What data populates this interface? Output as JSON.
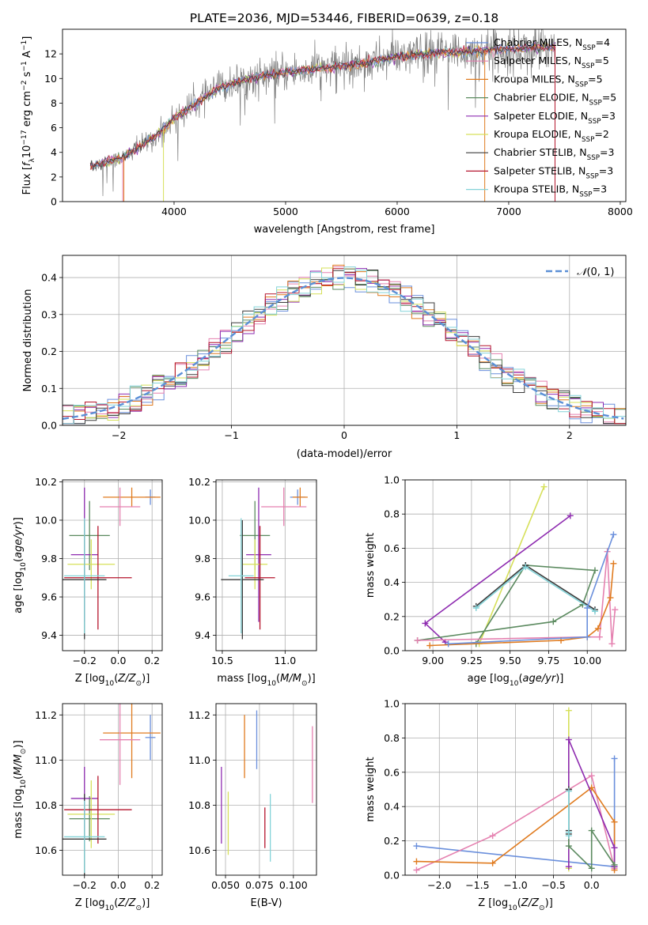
{
  "title": "PLATE=2036, MJD=53446, FIBERID=0639, z=0.18",
  "colors": {
    "chabrier_miles": "#6a8fdc",
    "salpeter_miles": "#e581b0",
    "kroupa_miles": "#e07b1f",
    "chabrier_elodie": "#5b8a5f",
    "salpeter_elodie": "#8e2bb0",
    "kroupa_elodie": "#d6e05a",
    "chabrier_stelib": "#3b3b3b",
    "salpeter_stelib": "#b5152d",
    "kroupa_stelib": "#84d3d8",
    "data": "#808080",
    "normal": "#5b8fd6"
  },
  "legend": [
    {
      "key": "chabrier_miles",
      "label": "Chabrier MILES, N",
      "sub": "SSP",
      "tail": "=4"
    },
    {
      "key": "salpeter_miles",
      "label": "Salpeter MILES, N",
      "sub": "SSP",
      "tail": "=5"
    },
    {
      "key": "kroupa_miles",
      "label": "Kroupa MILES, N",
      "sub": "SSP",
      "tail": "=5"
    },
    {
      "key": "chabrier_elodie",
      "label": "Chabrier ELODIE, N",
      "sub": "SSP",
      "tail": "=5"
    },
    {
      "key": "salpeter_elodie",
      "label": "Salpeter ELODIE, N",
      "sub": "SSP",
      "tail": "=3"
    },
    {
      "key": "kroupa_elodie",
      "label": "Kroupa ELODIE, N",
      "sub": "SSP",
      "tail": "=2"
    },
    {
      "key": "chabrier_stelib",
      "label": "Chabrier STELIB, N",
      "sub": "SSP",
      "tail": "=3"
    },
    {
      "key": "salpeter_stelib",
      "label": "Salpeter STELIB, N",
      "sub": "SSP",
      "tail": "=3"
    },
    {
      "key": "kroupa_stelib",
      "label": "Kroupa STELIB, N",
      "sub": "SSP",
      "tail": "=3"
    }
  ],
  "chart_data": [
    {
      "id": "spectrum",
      "type": "line",
      "xlabel": "wavelength [Angstrom, rest frame]",
      "ylabel": "Flux [f_λ 10^-17 erg cm^-2 s^-1 A^-1]",
      "xlim": [
        3000,
        8050
      ],
      "ylim": [
        0,
        14
      ],
      "xticks": [
        4000,
        5000,
        6000,
        7000,
        8000
      ],
      "yticks": [
        0,
        2,
        4,
        6,
        8,
        10,
        12
      ],
      "grid": false,
      "legend_position": "right",
      "continuum": {
        "x": [
          3250,
          3400,
          3550,
          3700,
          3850,
          4000,
          4200,
          4400,
          4600,
          4800,
          5000,
          5200,
          5400,
          5600,
          5800,
          6000,
          6200,
          6400,
          6600,
          6800,
          7000,
          7200,
          7400
        ],
        "y": [
          2.9,
          3.2,
          3.6,
          4.5,
          5.4,
          6.8,
          8.0,
          9.2,
          9.8,
          10.2,
          10.5,
          10.7,
          10.9,
          11.1,
          11.4,
          11.8,
          11.9,
          12.1,
          12.2,
          12.3,
          12.4,
          12.5,
          12.6
        ]
      },
      "data_range": [
        3250,
        7420
      ],
      "model_range": [
        3250,
        7420
      ]
    },
    {
      "id": "residuals",
      "type": "histogram",
      "xlabel": "(data-model)/error",
      "ylabel": "Normed distribution",
      "xlim": [
        -2.5,
        2.5
      ],
      "ylim": [
        0,
        0.46
      ],
      "xticks": [
        -2,
        -1,
        0,
        1,
        2
      ],
      "yticks": [
        0,
        0.1,
        0.2,
        0.3,
        0.4
      ],
      "grid": true,
      "legend": {
        "label": "N(0,1)",
        "position": "top-right"
      },
      "bin_width": 0.1
    },
    {
      "id": "age_vs_Z",
      "type": "errorbar",
      "xlabel": "Z [log10(Z/Z⊙)]",
      "ylabel": "age [log10(age/yr)]",
      "xlim": [
        -0.33,
        0.26
      ],
      "ylim": [
        9.32,
        10.21
      ],
      "xticks": [
        -0.2,
        0.0,
        0.2
      ],
      "yticks": [
        9.4,
        9.6,
        9.8,
        10.0,
        10.2
      ],
      "points": [
        {
          "key": "chabrier_miles",
          "x": 0.19,
          "y": 10.12,
          "xerr": 0.03,
          "yerr": 0.04
        },
        {
          "key": "kroupa_miles",
          "x": 0.08,
          "y": 10.12,
          "xerr": 0.17,
          "yerr": 0.05
        },
        {
          "key": "salpeter_miles",
          "x": 0.01,
          "y": 10.07,
          "xerr": 0.12,
          "yerr": 0.1
        },
        {
          "key": "chabrier_elodie",
          "x": -0.17,
          "y": 9.92,
          "xerr": 0.12,
          "yerr": 0.18
        },
        {
          "key": "salpeter_elodie",
          "x": -0.2,
          "y": 9.82,
          "xerr": 0.08,
          "yerr": 0.35
        },
        {
          "key": "kroupa_elodie",
          "x": -0.16,
          "y": 9.77,
          "xerr": 0.14,
          "yerr": 0.13
        },
        {
          "key": "salpeter_stelib",
          "x": -0.12,
          "y": 9.7,
          "xerr": 0.2,
          "yerr": 0.27
        },
        {
          "key": "chabrier_stelib",
          "x": -0.2,
          "y": 9.69,
          "xerr": 0.13,
          "yerr": 0.31
        },
        {
          "key": "kroupa_stelib",
          "x": -0.2,
          "y": 9.71,
          "xerr": 0.12,
          "yerr": 0.3
        }
      ]
    },
    {
      "id": "age_vs_mass",
      "type": "errorbar",
      "xlabel": "mass [log10(M/M⊙)]",
      "ylabel": "",
      "xlim": [
        10.45,
        11.25
      ],
      "ylim": [
        9.32,
        10.21
      ],
      "xticks": [
        10.5,
        11.0
      ],
      "yticks": [
        9.4,
        9.6,
        9.8,
        10.0,
        10.2
      ],
      "points": [
        {
          "key": "chabrier_miles",
          "x": 11.1,
          "y": 10.12,
          "xerr": 0.06,
          "yerr": 0.04
        },
        {
          "key": "kroupa_miles",
          "x": 11.12,
          "y": 10.12,
          "xerr": 0.06,
          "yerr": 0.05
        },
        {
          "key": "salpeter_miles",
          "x": 10.99,
          "y": 10.07,
          "xerr": 0.18,
          "yerr": 0.1
        },
        {
          "key": "chabrier_elodie",
          "x": 10.76,
          "y": 9.92,
          "xerr": 0.12,
          "yerr": 0.18
        },
        {
          "key": "salpeter_elodie",
          "x": 10.79,
          "y": 9.82,
          "xerr": 0.1,
          "yerr": 0.35
        },
        {
          "key": "kroupa_elodie",
          "x": 10.76,
          "y": 9.77,
          "xerr": 0.1,
          "yerr": 0.13
        },
        {
          "key": "salpeter_stelib",
          "x": 10.8,
          "y": 9.7,
          "xerr": 0.12,
          "yerr": 0.27
        },
        {
          "key": "chabrier_stelib",
          "x": 10.66,
          "y": 9.69,
          "xerr": 0.17,
          "yerr": 0.31
        },
        {
          "key": "kroupa_stelib",
          "x": 10.65,
          "y": 9.71,
          "xerr": 0.1,
          "yerr": 0.3
        }
      ]
    },
    {
      "id": "mass_weight_vs_age",
      "type": "line",
      "xlabel": "age [log10(age/yr)]",
      "ylabel": "mass weight",
      "xlim": [
        8.82,
        10.25
      ],
      "ylim": [
        0,
        1.0
      ],
      "xticks": [
        9.0,
        9.25,
        9.5,
        9.75,
        10.0
      ],
      "yticks": [
        0.0,
        0.2,
        0.4,
        0.6,
        0.8,
        1.0
      ],
      "series": [
        {
          "key": "kroupa_elodie",
          "x": [
            9.3,
            9.72
          ],
          "y": [
            0.04,
            0.96
          ]
        },
        {
          "key": "salpeter_elodie",
          "x": [
            9.89,
            8.95,
            9.08
          ],
          "y": [
            0.79,
            0.16,
            0.05
          ]
        },
        {
          "key": "chabrier_elodie",
          "x": [
            9.28,
            9.6,
            10.05,
            9.97,
            9.78,
            8.9
          ],
          "y": [
            0.04,
            0.5,
            0.47,
            0.27,
            0.17,
            0.06
          ]
        },
        {
          "key": "chabrier_stelib",
          "x": [
            10.05,
            9.6,
            9.28
          ],
          "y": [
            0.24,
            0.5,
            0.26
          ]
        },
        {
          "key": "kroupa_stelib",
          "x": [
            10.05,
            9.6,
            9.28
          ],
          "y": [
            0.23,
            0.49,
            0.25
          ]
        },
        {
          "key": "salpeter_miles",
          "x": [
            10.18,
            10.16,
            10.13,
            10.08,
            10.0,
            8.9
          ],
          "y": [
            0.24,
            0.04,
            0.58,
            0.08,
            0.08,
            0.06
          ]
        },
        {
          "key": "kroupa_miles",
          "x": [
            10.17,
            10.15,
            10.07,
            10.0,
            9.83,
            8.98
          ],
          "y": [
            0.51,
            0.31,
            0.13,
            0.08,
            0.06,
            0.03
          ]
        },
        {
          "key": "chabrier_miles",
          "x": [
            10.17,
            10.0,
            10.0,
            9.1
          ],
          "y": [
            0.68,
            0.25,
            0.08,
            0.04
          ]
        }
      ]
    },
    {
      "id": "mass_vs_Z",
      "type": "errorbar",
      "xlabel": "Z [log10(Z/Z⊙)]",
      "ylabel": "mass [log10(M/M⊙)]",
      "xlim": [
        -0.33,
        0.26
      ],
      "ylim": [
        10.49,
        11.25
      ],
      "xticks": [
        -0.2,
        0.0,
        0.2
      ],
      "yticks": [
        10.6,
        10.8,
        11.0,
        11.2
      ],
      "points": [
        {
          "key": "chabrier_miles",
          "x": 0.19,
          "y": 11.1,
          "xerr": 0.03,
          "yerr": 0.1
        },
        {
          "key": "kroupa_miles",
          "x": 0.08,
          "y": 11.12,
          "xerr": 0.17,
          "yerr": 0.2
        },
        {
          "key": "salpeter_miles",
          "x": 0.01,
          "y": 11.09,
          "xerr": 0.12,
          "yerr": 0.2
        },
        {
          "key": "chabrier_elodie",
          "x": -0.17,
          "y": 10.74,
          "xerr": 0.12,
          "yerr": 0.1
        },
        {
          "key": "salpeter_elodie",
          "x": -0.2,
          "y": 10.83,
          "xerr": 0.08,
          "yerr": 0.14
        },
        {
          "key": "kroupa_elodie",
          "x": -0.16,
          "y": 10.76,
          "xerr": 0.14,
          "yerr": 0.15
        },
        {
          "key": "salpeter_stelib",
          "x": -0.12,
          "y": 10.78,
          "xerr": 0.2,
          "yerr": 0.15
        },
        {
          "key": "chabrier_stelib",
          "x": -0.2,
          "y": 10.65,
          "xerr": 0.13,
          "yerr": 0.2
        },
        {
          "key": "kroupa_stelib",
          "x": -0.2,
          "y": 10.66,
          "xerr": 0.12,
          "yerr": 0.16
        }
      ]
    },
    {
      "id": "mass_vs_ebv",
      "type": "errorbar",
      "xlabel": "E(B-V)",
      "ylabel": "",
      "xlim": [
        0.043,
        0.117
      ],
      "ylim": [
        10.49,
        11.25
      ],
      "xticks": [
        0.05,
        0.075,
        0.1
      ],
      "yticks": [
        10.6,
        10.8,
        11.0,
        11.2
      ],
      "points": [
        {
          "key": "salpeter_elodie",
          "x": 0.047,
          "y": 10.8,
          "xerr": 0,
          "yerr": 0.17
        },
        {
          "key": "kroupa_elodie",
          "x": 0.052,
          "y": 10.72,
          "xerr": 0,
          "yerr": 0.14
        },
        {
          "key": "kroupa_miles",
          "x": 0.064,
          "y": 11.06,
          "xerr": 0,
          "yerr": 0.14
        },
        {
          "key": "chabrier_miles",
          "x": 0.073,
          "y": 11.09,
          "xerr": 0,
          "yerr": 0.13
        },
        {
          "key": "salpeter_stelib",
          "x": 0.079,
          "y": 10.7,
          "xerr": 0,
          "yerr": 0.09
        },
        {
          "key": "kroupa_stelib",
          "x": 0.083,
          "y": 10.7,
          "xerr": 0,
          "yerr": 0.15
        },
        {
          "key": "salpeter_miles",
          "x": 0.114,
          "y": 10.98,
          "xerr": 0,
          "yerr": 0.17
        }
      ]
    },
    {
      "id": "mass_weight_vs_Z",
      "type": "line",
      "xlabel": "Z [log10(Z/Z⊙)]",
      "ylabel": "mass weight",
      "xlim": [
        -2.45,
        0.45
      ],
      "ylim": [
        0,
        1.0
      ],
      "xticks": [
        -2.0,
        -1.5,
        -1.0,
        -0.5,
        0.0
      ],
      "yticks": [
        0.0,
        0.2,
        0.4,
        0.6,
        0.8,
        1.0
      ],
      "series": [
        {
          "key": "chabrier_miles",
          "x": [
            -2.3,
            0.3,
            0.3
          ],
          "y": [
            0.17,
            0.05,
            0.68
          ]
        },
        {
          "key": "salpeter_miles",
          "x": [
            -2.3,
            -1.3,
            0.0,
            0.3
          ],
          "y": [
            0.03,
            0.23,
            0.58,
            0.04
          ]
        },
        {
          "key": "kroupa_miles",
          "x": [
            -2.3,
            -1.3,
            0.0,
            0.3,
            0.3
          ],
          "y": [
            0.08,
            0.07,
            0.51,
            0.31,
            0.03
          ]
        },
        {
          "key": "kroupa_elodie",
          "x": [
            -0.3,
            -0.3
          ],
          "y": [
            0.04,
            0.96
          ]
        },
        {
          "key": "salpeter_elodie",
          "x": [
            -0.3,
            -0.3,
            0.3,
            0.3
          ],
          "y": [
            0.05,
            0.79,
            0.16,
            0.05
          ]
        },
        {
          "key": "chabrier_elodie",
          "x": [
            -0.3,
            -0.3,
            0.0,
            0.0,
            0.3
          ],
          "y": [
            0.5,
            0.17,
            0.04,
            0.26,
            0.06
          ]
        },
        {
          "key": "chabrier_stelib",
          "x": [
            -0.3,
            -0.3,
            -0.3
          ],
          "y": [
            0.24,
            0.5,
            0.26
          ]
        },
        {
          "key": "kroupa_stelib",
          "x": [
            -0.3,
            -0.3,
            -0.3
          ],
          "y": [
            0.23,
            0.49,
            0.25
          ]
        }
      ]
    }
  ]
}
